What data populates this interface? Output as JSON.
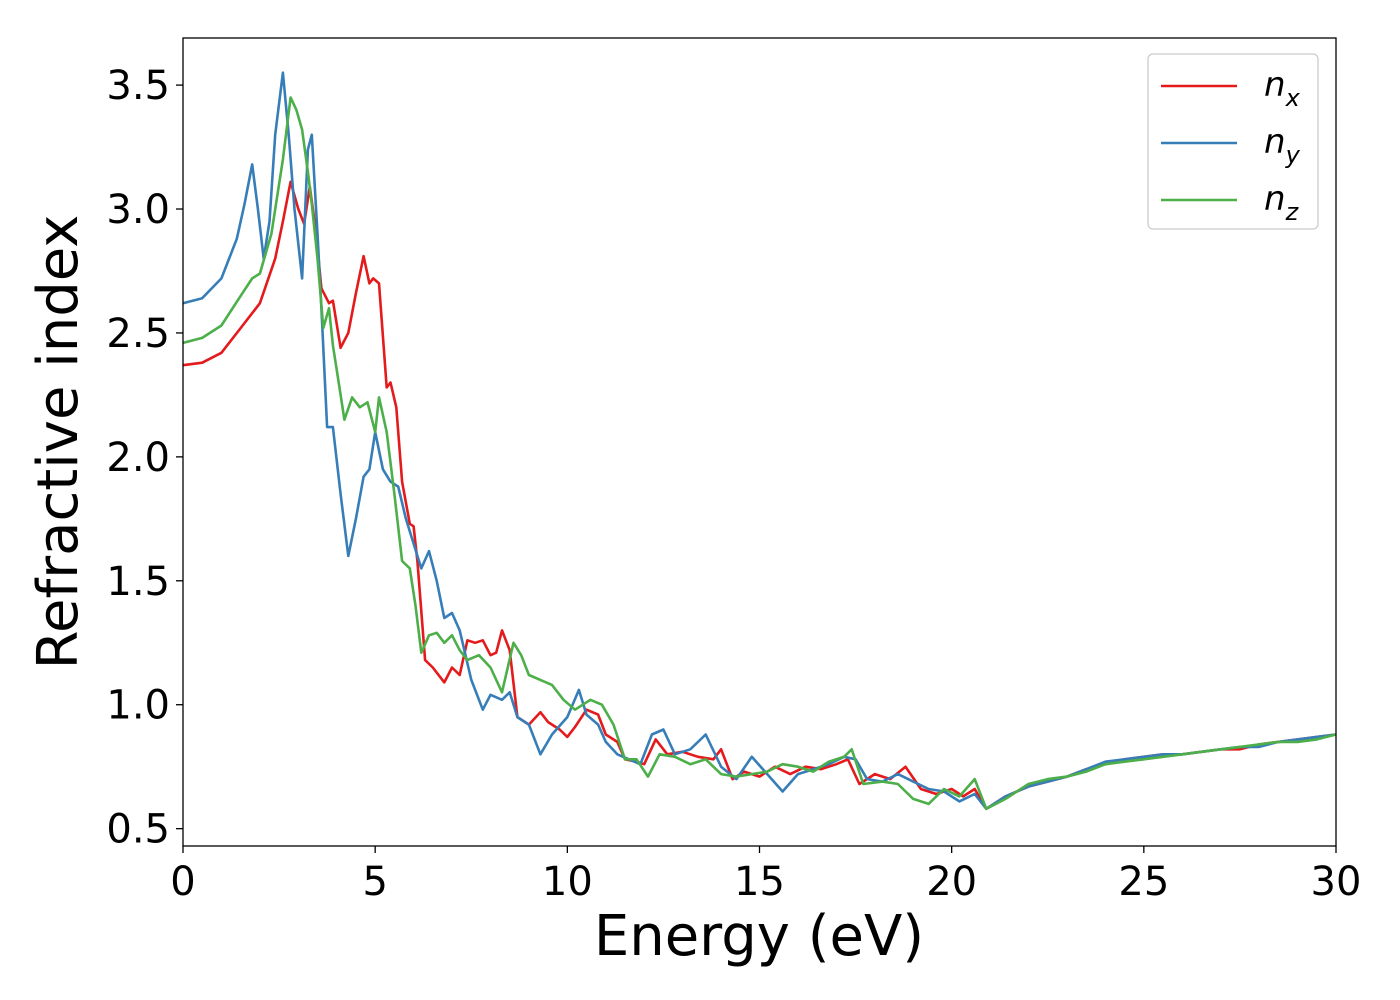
{
  "chart_data": {
    "type": "line",
    "title": "",
    "xlabel": "Energy (eV)",
    "ylabel": "Refractive index",
    "xlim": [
      0,
      30
    ],
    "ylim": [
      0.43,
      3.69
    ],
    "xticks": [
      0,
      5,
      10,
      15,
      20,
      25,
      30
    ],
    "xtick_labels": [
      "0",
      "5",
      "10",
      "15",
      "20",
      "25",
      "30"
    ],
    "yticks": [
      0.5,
      1.0,
      1.5,
      2.0,
      2.5,
      3.0,
      3.5
    ],
    "ytick_labels": [
      "0.5",
      "1.0",
      "1.5",
      "2.0",
      "2.5",
      "3.0",
      "3.5"
    ],
    "grid": false,
    "legend_position": "top-right",
    "series": [
      {
        "name": "n_x",
        "legend_base": "n",
        "legend_sub": "x",
        "color": "#e41a1c",
        "points": [
          [
            0,
            2.37
          ],
          [
            0.5,
            2.38
          ],
          [
            1.0,
            2.42
          ],
          [
            1.5,
            2.52
          ],
          [
            2.0,
            2.62
          ],
          [
            2.4,
            2.8
          ],
          [
            2.6,
            2.95
          ],
          [
            2.8,
            3.11
          ],
          [
            3.0,
            3.0
          ],
          [
            3.15,
            2.94
          ],
          [
            3.3,
            3.09
          ],
          [
            3.45,
            2.92
          ],
          [
            3.6,
            2.68
          ],
          [
            3.8,
            2.62
          ],
          [
            3.9,
            2.63
          ],
          [
            4.1,
            2.44
          ],
          [
            4.3,
            2.5
          ],
          [
            4.5,
            2.66
          ],
          [
            4.7,
            2.81
          ],
          [
            4.85,
            2.7
          ],
          [
            4.95,
            2.72
          ],
          [
            5.1,
            2.7
          ],
          [
            5.3,
            2.28
          ],
          [
            5.4,
            2.3
          ],
          [
            5.55,
            2.2
          ],
          [
            5.7,
            1.9
          ],
          [
            5.9,
            1.73
          ],
          [
            6.0,
            1.72
          ],
          [
            6.1,
            1.58
          ],
          [
            6.3,
            1.18
          ],
          [
            6.5,
            1.15
          ],
          [
            6.8,
            1.09
          ],
          [
            7.0,
            1.15
          ],
          [
            7.2,
            1.12
          ],
          [
            7.4,
            1.26
          ],
          [
            7.6,
            1.25
          ],
          [
            7.8,
            1.26
          ],
          [
            8.0,
            1.2
          ],
          [
            8.15,
            1.21
          ],
          [
            8.3,
            1.3
          ],
          [
            8.5,
            1.22
          ],
          [
            8.7,
            0.95
          ],
          [
            9.0,
            0.92
          ],
          [
            9.3,
            0.97
          ],
          [
            9.5,
            0.93
          ],
          [
            9.8,
            0.9
          ],
          [
            10.0,
            0.87
          ],
          [
            10.2,
            0.91
          ],
          [
            10.5,
            0.98
          ],
          [
            10.8,
            0.96
          ],
          [
            11.0,
            0.88
          ],
          [
            11.3,
            0.85
          ],
          [
            11.5,
            0.78
          ],
          [
            11.8,
            0.77
          ],
          [
            12.0,
            0.76
          ],
          [
            12.3,
            0.86
          ],
          [
            12.6,
            0.8
          ],
          [
            13.0,
            0.81
          ],
          [
            13.4,
            0.79
          ],
          [
            13.8,
            0.78
          ],
          [
            14.0,
            0.82
          ],
          [
            14.3,
            0.7
          ],
          [
            14.6,
            0.73
          ],
          [
            15.0,
            0.71
          ],
          [
            15.4,
            0.75
          ],
          [
            15.8,
            0.72
          ],
          [
            16.2,
            0.75
          ],
          [
            16.6,
            0.74
          ],
          [
            17.0,
            0.76
          ],
          [
            17.3,
            0.78
          ],
          [
            17.6,
            0.68
          ],
          [
            18.0,
            0.72
          ],
          [
            18.4,
            0.7
          ],
          [
            18.8,
            0.75
          ],
          [
            19.2,
            0.66
          ],
          [
            19.6,
            0.64
          ],
          [
            20.0,
            0.66
          ],
          [
            20.3,
            0.63
          ],
          [
            20.6,
            0.66
          ],
          [
            20.9,
            0.58
          ],
          [
            21.4,
            0.63
          ],
          [
            22.0,
            0.67
          ],
          [
            22.5,
            0.69
          ],
          [
            23.0,
            0.71
          ],
          [
            23.5,
            0.74
          ],
          [
            24.0,
            0.76
          ],
          [
            24.5,
            0.78
          ],
          [
            25.0,
            0.79
          ],
          [
            25.5,
            0.8
          ],
          [
            26.0,
            0.8
          ],
          [
            26.5,
            0.81
          ],
          [
            27.0,
            0.82
          ],
          [
            27.5,
            0.82
          ],
          [
            28.0,
            0.84
          ],
          [
            28.5,
            0.85
          ],
          [
            29.0,
            0.86
          ],
          [
            29.5,
            0.87
          ],
          [
            30.0,
            0.88
          ]
        ]
      },
      {
        "name": "n_y",
        "legend_base": "n",
        "legend_sub": "y",
        "color": "#377eb8",
        "points": [
          [
            0,
            2.62
          ],
          [
            0.5,
            2.64
          ],
          [
            1.0,
            2.72
          ],
          [
            1.4,
            2.88
          ],
          [
            1.6,
            3.02
          ],
          [
            1.8,
            3.18
          ],
          [
            1.95,
            3.0
          ],
          [
            2.1,
            2.8
          ],
          [
            2.25,
            2.95
          ],
          [
            2.4,
            3.3
          ],
          [
            2.6,
            3.55
          ],
          [
            2.75,
            3.3
          ],
          [
            2.9,
            3.0
          ],
          [
            3.1,
            2.72
          ],
          [
            3.25,
            3.24
          ],
          [
            3.35,
            3.3
          ],
          [
            3.5,
            2.9
          ],
          [
            3.6,
            2.6
          ],
          [
            3.75,
            2.12
          ],
          [
            3.9,
            2.12
          ],
          [
            4.1,
            1.85
          ],
          [
            4.3,
            1.6
          ],
          [
            4.5,
            1.75
          ],
          [
            4.7,
            1.92
          ],
          [
            4.85,
            1.95
          ],
          [
            5.0,
            2.1
          ],
          [
            5.2,
            1.95
          ],
          [
            5.4,
            1.9
          ],
          [
            5.6,
            1.88
          ],
          [
            5.8,
            1.75
          ],
          [
            6.0,
            1.65
          ],
          [
            6.2,
            1.55
          ],
          [
            6.4,
            1.62
          ],
          [
            6.6,
            1.5
          ],
          [
            6.8,
            1.35
          ],
          [
            7.0,
            1.37
          ],
          [
            7.2,
            1.3
          ],
          [
            7.5,
            1.1
          ],
          [
            7.8,
            0.98
          ],
          [
            8.0,
            1.04
          ],
          [
            8.3,
            1.02
          ],
          [
            8.5,
            1.05
          ],
          [
            8.7,
            0.95
          ],
          [
            9.0,
            0.92
          ],
          [
            9.3,
            0.8
          ],
          [
            9.6,
            0.88
          ],
          [
            10.0,
            0.95
          ],
          [
            10.3,
            1.06
          ],
          [
            10.5,
            0.96
          ],
          [
            10.8,
            0.92
          ],
          [
            11.0,
            0.85
          ],
          [
            11.3,
            0.8
          ],
          [
            11.6,
            0.78
          ],
          [
            11.9,
            0.76
          ],
          [
            12.2,
            0.88
          ],
          [
            12.5,
            0.9
          ],
          [
            12.8,
            0.8
          ],
          [
            13.2,
            0.82
          ],
          [
            13.6,
            0.88
          ],
          [
            14.0,
            0.75
          ],
          [
            14.4,
            0.7
          ],
          [
            14.8,
            0.79
          ],
          [
            15.2,
            0.72
          ],
          [
            15.6,
            0.65
          ],
          [
            16.0,
            0.72
          ],
          [
            16.4,
            0.74
          ],
          [
            16.8,
            0.76
          ],
          [
            17.2,
            0.79
          ],
          [
            17.5,
            0.78
          ],
          [
            17.8,
            0.7
          ],
          [
            18.2,
            0.69
          ],
          [
            18.6,
            0.72
          ],
          [
            19.0,
            0.69
          ],
          [
            19.4,
            0.66
          ],
          [
            19.8,
            0.65
          ],
          [
            20.2,
            0.61
          ],
          [
            20.6,
            0.64
          ],
          [
            20.9,
            0.58
          ],
          [
            21.4,
            0.63
          ],
          [
            22.0,
            0.67
          ],
          [
            22.5,
            0.69
          ],
          [
            23.0,
            0.71
          ],
          [
            23.5,
            0.74
          ],
          [
            24.0,
            0.77
          ],
          [
            24.5,
            0.78
          ],
          [
            25.0,
            0.79
          ],
          [
            25.5,
            0.8
          ],
          [
            26.0,
            0.8
          ],
          [
            26.5,
            0.81
          ],
          [
            27.0,
            0.82
          ],
          [
            27.5,
            0.83
          ],
          [
            28.0,
            0.83
          ],
          [
            28.5,
            0.85
          ],
          [
            29.0,
            0.86
          ],
          [
            29.5,
            0.87
          ],
          [
            30.0,
            0.88
          ]
        ]
      },
      {
        "name": "n_z",
        "legend_base": "n",
        "legend_sub": "z",
        "color": "#4daf4a",
        "points": [
          [
            0,
            2.46
          ],
          [
            0.5,
            2.48
          ],
          [
            1.0,
            2.53
          ],
          [
            1.5,
            2.65
          ],
          [
            1.8,
            2.72
          ],
          [
            2.0,
            2.74
          ],
          [
            2.3,
            2.9
          ],
          [
            2.6,
            3.2
          ],
          [
            2.8,
            3.45
          ],
          [
            2.95,
            3.4
          ],
          [
            3.1,
            3.32
          ],
          [
            3.25,
            3.15
          ],
          [
            3.35,
            3.02
          ],
          [
            3.5,
            2.8
          ],
          [
            3.65,
            2.52
          ],
          [
            3.8,
            2.6
          ],
          [
            3.9,
            2.45
          ],
          [
            4.05,
            2.3
          ],
          [
            4.2,
            2.15
          ],
          [
            4.4,
            2.24
          ],
          [
            4.6,
            2.2
          ],
          [
            4.8,
            2.22
          ],
          [
            5.0,
            2.1
          ],
          [
            5.1,
            2.24
          ],
          [
            5.3,
            2.1
          ],
          [
            5.5,
            1.85
          ],
          [
            5.7,
            1.58
          ],
          [
            5.9,
            1.55
          ],
          [
            6.05,
            1.4
          ],
          [
            6.2,
            1.21
          ],
          [
            6.4,
            1.28
          ],
          [
            6.6,
            1.29
          ],
          [
            6.8,
            1.25
          ],
          [
            7.0,
            1.28
          ],
          [
            7.2,
            1.22
          ],
          [
            7.4,
            1.18
          ],
          [
            7.7,
            1.2
          ],
          [
            8.0,
            1.15
          ],
          [
            8.3,
            1.05
          ],
          [
            8.6,
            1.25
          ],
          [
            8.8,
            1.2
          ],
          [
            9.0,
            1.12
          ],
          [
            9.3,
            1.1
          ],
          [
            9.6,
            1.08
          ],
          [
            9.9,
            1.02
          ],
          [
            10.2,
            0.98
          ],
          [
            10.6,
            1.02
          ],
          [
            10.9,
            1.0
          ],
          [
            11.2,
            0.92
          ],
          [
            11.5,
            0.78
          ],
          [
            11.8,
            0.78
          ],
          [
            12.1,
            0.71
          ],
          [
            12.4,
            0.8
          ],
          [
            12.8,
            0.79
          ],
          [
            13.2,
            0.76
          ],
          [
            13.6,
            0.78
          ],
          [
            14.0,
            0.72
          ],
          [
            14.4,
            0.71
          ],
          [
            14.8,
            0.72
          ],
          [
            15.2,
            0.73
          ],
          [
            15.6,
            0.76
          ],
          [
            16.0,
            0.75
          ],
          [
            16.4,
            0.73
          ],
          [
            16.8,
            0.77
          ],
          [
            17.2,
            0.79
          ],
          [
            17.4,
            0.82
          ],
          [
            17.7,
            0.68
          ],
          [
            18.2,
            0.69
          ],
          [
            18.6,
            0.68
          ],
          [
            19.0,
            0.62
          ],
          [
            19.4,
            0.6
          ],
          [
            19.8,
            0.66
          ],
          [
            20.2,
            0.63
          ],
          [
            20.6,
            0.7
          ],
          [
            20.9,
            0.58
          ],
          [
            21.4,
            0.62
          ],
          [
            22.0,
            0.68
          ],
          [
            22.5,
            0.7
          ],
          [
            23.0,
            0.71
          ],
          [
            23.5,
            0.73
          ],
          [
            24.0,
            0.76
          ],
          [
            24.5,
            0.77
          ],
          [
            25.0,
            0.78
          ],
          [
            25.5,
            0.79
          ],
          [
            26.0,
            0.8
          ],
          [
            26.5,
            0.81
          ],
          [
            27.0,
            0.82
          ],
          [
            27.5,
            0.83
          ],
          [
            28.0,
            0.84
          ],
          [
            28.5,
            0.85
          ],
          [
            29.0,
            0.85
          ],
          [
            29.5,
            0.86
          ],
          [
            30.0,
            0.88
          ]
        ]
      }
    ]
  }
}
